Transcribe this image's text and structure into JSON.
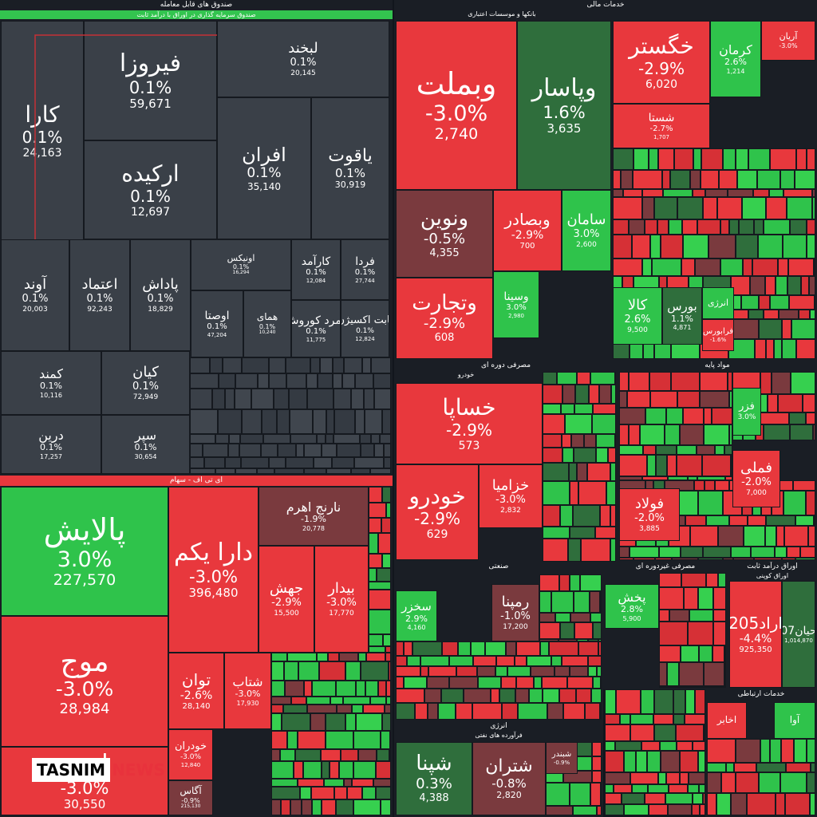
{
  "logo": {
    "brand": "TASNIM",
    "suffix": "NEWS"
  },
  "colors": {
    "dark": "#3a4048",
    "red": "#e8383d",
    "red2": "#d63036",
    "dred": "#7a3a3e",
    "green": "#2fc34b",
    "dgreen": "#2f6e3c",
    "lgreen": "#36d04f",
    "bg": "#1a1e25"
  },
  "chart_data": {
    "type": "treemap",
    "sections": [
      {
        "id": "s1",
        "title": "صندوق های قابل معامله",
        "sub": "صندوق سرمایه گذاری در اوراق با درآمد ثابت",
        "tiles": [
          {
            "n": "کارا",
            "p": "0.1%",
            "v": "24,163",
            "c": "dark"
          },
          {
            "n": "فیروزا",
            "p": "0.1%",
            "v": "59,671",
            "c": "dark"
          },
          {
            "n": "لبخند",
            "p": "0.1%",
            "v": "20,145",
            "c": "dark"
          },
          {
            "n": "ارکیده",
            "p": "0.1%",
            "v": "12,697",
            "c": "dark"
          },
          {
            "n": "افران",
            "p": "0.1%",
            "v": "35,140",
            "c": "dark"
          },
          {
            "n": "یاقوت",
            "p": "0.1%",
            "v": "30,919",
            "c": "dark"
          },
          {
            "n": "آوند",
            "p": "0.1%",
            "v": "20,003",
            "c": "dark"
          },
          {
            "n": "اعتماد",
            "p": "0.1%",
            "v": "92,243",
            "c": "dark"
          },
          {
            "n": "پاداش",
            "p": "0.1%",
            "v": "18,829",
            "c": "dark"
          },
          {
            "n": "اونیکس",
            "p": "0.1%",
            "v": "16,294",
            "c": "dark"
          },
          {
            "n": "کارآمد",
            "p": "0.1%",
            "v": "12,084",
            "c": "dark"
          },
          {
            "n": "فردا",
            "p": "0.1%",
            "v": "27,744",
            "c": "dark"
          },
          {
            "n": "اوصتا",
            "p": "0.1%",
            "v": "47,204",
            "c": "dark"
          },
          {
            "n": "همای",
            "p": "0.1%",
            "v": "10,240",
            "c": "dark"
          },
          {
            "n": "زمرد کوروش",
            "p": "0.1%",
            "v": "11,775",
            "c": "dark"
          },
          {
            "n": "ثابت اکسیژن",
            "p": "0.1%",
            "v": "12,824",
            "c": "dark"
          },
          {
            "n": "کمند",
            "p": "0.1%",
            "v": "10,116",
            "c": "dark"
          },
          {
            "n": "کیان",
            "p": "0.1%",
            "v": "72,949",
            "c": "dark"
          },
          {
            "n": "درین",
            "p": "0.1%",
            "v": "17,257",
            "c": "dark"
          },
          {
            "n": "سپر",
            "p": "0.1%",
            "v": "30,654",
            "c": "dark"
          }
        ]
      },
      {
        "id": "s2",
        "title": "ای تی اف - سهام",
        "tiles": [
          {
            "n": "پالایش",
            "p": "3.0%",
            "v": "227,570",
            "c": "green"
          },
          {
            "n": "دارا یکم",
            "p": "-3.0%",
            "v": "396,480",
            "c": "red"
          },
          {
            "n": "نارنج اهرم",
            "p": "-1.9%",
            "v": "20,778",
            "c": "dred"
          },
          {
            "n": "جهش",
            "p": "-2.9%",
            "v": "15,500",
            "c": "red"
          },
          {
            "n": "بیدار",
            "p": "-3.0%",
            "v": "17,770",
            "c": "red"
          },
          {
            "n": "موج",
            "p": "-3.0%",
            "v": "28,984",
            "c": "red"
          },
          {
            "n": "توان",
            "p": "-2.6%",
            "v": "28,140",
            "c": "red"
          },
          {
            "n": "شتاب",
            "p": "-3.0%",
            "v": "17,930",
            "c": "red"
          },
          {
            "n": "خودران",
            "p": "-3.0%",
            "v": "12,840",
            "c": "red"
          },
          {
            "n": "آگاس",
            "p": "-0.9%",
            "v": "215,130",
            "c": "dred"
          },
          {
            "n": "اهرم",
            "p": "-3.0%",
            "v": "30,550",
            "c": "red"
          }
        ]
      },
      {
        "id": "s3",
        "title": "خدمات مالی",
        "sub": "بانکها و موسسات اعتباری",
        "tiles": [
          {
            "n": "وبملت",
            "p": "-3.0%",
            "v": "2,740",
            "c": "red"
          },
          {
            "n": "وپاسار",
            "p": "1.6%",
            "v": "3,635",
            "c": "dgreen"
          },
          {
            "n": "ونوین",
            "p": "-0.5%",
            "v": "4,355",
            "c": "dred"
          },
          {
            "n": "وبصادر",
            "p": "-2.9%",
            "v": "700",
            "c": "red"
          },
          {
            "n": "سامان",
            "p": "3.0%",
            "v": "2,600",
            "c": "green"
          },
          {
            "n": "وتجارت",
            "p": "-2.9%",
            "v": "608",
            "c": "red"
          },
          {
            "n": "وسینا",
            "p": "3.0%",
            "v": "2,980",
            "c": "green"
          },
          {
            "n": "خگستر",
            "p": "-2.9%",
            "v": "6,020",
            "c": "red"
          },
          {
            "n": "کرمان",
            "p": "2.6%",
            "v": "1,214",
            "c": "green"
          },
          {
            "n": "آریان",
            "p": "-3.0%",
            "v": "",
            "c": "red"
          },
          {
            "n": "شستا",
            "p": "-2.7%",
            "v": "1,707",
            "c": "red"
          },
          {
            "n": "کالا",
            "p": "2.6%",
            "v": "9,500",
            "c": "green"
          },
          {
            "n": "بورس",
            "p": "1.1%",
            "v": "4,871",
            "c": "dgreen"
          },
          {
            "n": "انرژی",
            "p": "",
            "v": "",
            "c": "green"
          },
          {
            "n": "فرابورس",
            "p": "-1.6%",
            "v": "",
            "c": "red"
          }
        ]
      },
      {
        "id": "s4",
        "title": "مصرفی دوره ای",
        "sub": "خودرو",
        "tiles": [
          {
            "n": "خساپا",
            "p": "-2.9%",
            "v": "573",
            "c": "red"
          },
          {
            "n": "خودرو",
            "p": "-2.9%",
            "v": "629",
            "c": "red"
          },
          {
            "n": "خزامیا",
            "p": "-3.0%",
            "v": "2,832",
            "c": "red"
          }
        ]
      },
      {
        "id": "s5",
        "title": "مواد پایه",
        "tiles": [
          {
            "n": "فولاد",
            "p": "-2.0%",
            "v": "3,885",
            "c": "red"
          },
          {
            "n": "فملی",
            "p": "-2.0%",
            "v": "7,000",
            "c": "red"
          },
          {
            "n": "فزر",
            "p": "3.0%",
            "v": "",
            "c": "green"
          }
        ]
      },
      {
        "id": "s6",
        "title": "صنعتی",
        "tiles": [
          {
            "n": "سخزر",
            "p": "2.9%",
            "v": "4,160",
            "c": "green"
          },
          {
            "n": "رمپنا",
            "p": "-1.0%",
            "v": "17,200",
            "c": "dred"
          }
        ]
      },
      {
        "id": "s7",
        "title": "مصرفی غیردوره ای",
        "tiles": [
          {
            "n": "پخش",
            "p": "2.8%",
            "v": "5,900",
            "c": "green"
          }
        ]
      },
      {
        "id": "s8",
        "title": "اوراق درآمد ثابت",
        "sub": "اوراق کوپنی",
        "tiles": [
          {
            "n": "اراد205",
            "p": "-4.4%",
            "v": "925,350",
            "c": "red"
          },
          {
            "n": "حیان07",
            "p": "",
            "v": "1,014,870",
            "c": "dgreen"
          }
        ]
      },
      {
        "id": "s9",
        "title": "انرژی",
        "sub": "فرآورده های نفتی",
        "tiles": [
          {
            "n": "شپنا",
            "p": "0.3%",
            "v": "4,388",
            "c": "dgreen"
          },
          {
            "n": "شتران",
            "p": "-0.8%",
            "v": "2,820",
            "c": "dred"
          },
          {
            "n": "شبندر",
            "p": "-0.9%",
            "v": "",
            "c": "dred"
          }
        ]
      },
      {
        "id": "s10",
        "title": "خدمات ارتباطی",
        "tiles": [
          {
            "n": "اخابر",
            "p": "",
            "v": "",
            "c": "red"
          },
          {
            "n": "آوا",
            "p": "",
            "v": "",
            "c": "green"
          }
        ]
      }
    ]
  }
}
